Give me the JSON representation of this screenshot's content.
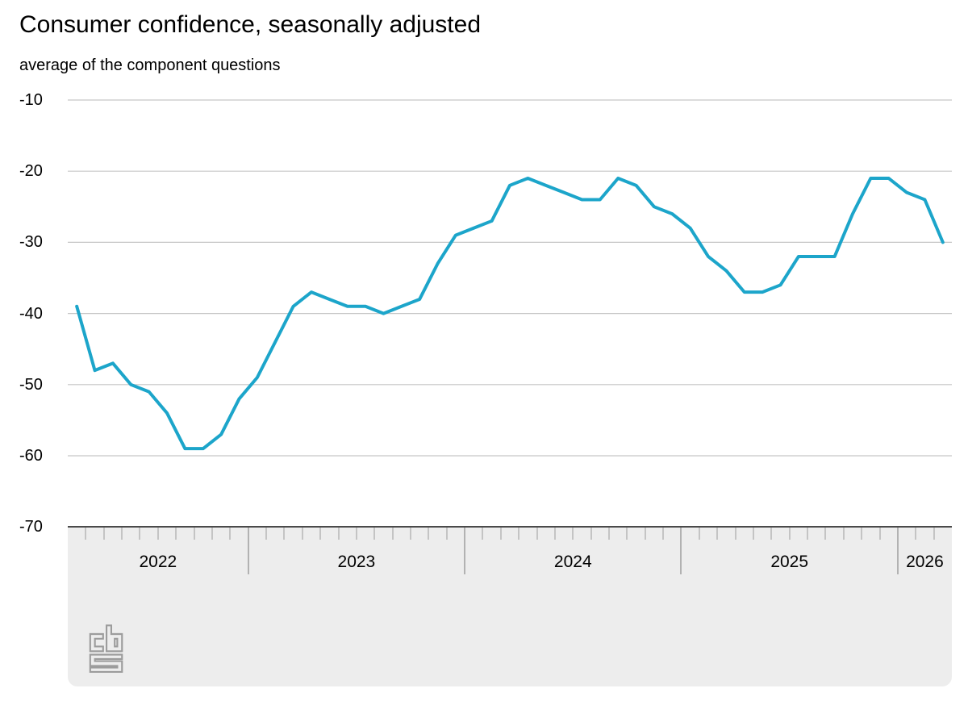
{
  "header": {
    "title": "Consumer confidence, seasonally adjusted",
    "subtitle": "average of the component questions"
  },
  "chart_data": {
    "type": "line",
    "title": "Consumer confidence, seasonally adjusted",
    "subtitle": "average of the component questions",
    "frequency": "monthly",
    "x_months": [
      "2022-03",
      "2022-04",
      "2022-05",
      "2022-06",
      "2022-07",
      "2022-08",
      "2022-09",
      "2022-10",
      "2022-11",
      "2022-12",
      "2023-01",
      "2023-02",
      "2023-03",
      "2023-04",
      "2023-05",
      "2023-06",
      "2023-07",
      "2023-08",
      "2023-09",
      "2023-10",
      "2023-11",
      "2023-12",
      "2024-01",
      "2024-02",
      "2024-03",
      "2024-04",
      "2024-05",
      "2024-06",
      "2024-07",
      "2024-08",
      "2024-09",
      "2024-10",
      "2024-11",
      "2024-12",
      "2025-01",
      "2025-02",
      "2025-03",
      "2025-04",
      "2025-05",
      "2025-06",
      "2025-07",
      "2025-08",
      "2025-09",
      "2025-10",
      "2025-11",
      "2025-12",
      "2026-01",
      "2026-02",
      "2026-03"
    ],
    "series": [
      {
        "name": "consumer confidence (seasonally adjusted)",
        "values": [
          -39,
          -48,
          -47,
          -50,
          -51,
          -54,
          -59,
          -59,
          -57,
          -52,
          -49,
          -44,
          -39,
          -37,
          -38,
          -39,
          -39,
          -40,
          -39,
          -38,
          -33,
          -29,
          -28,
          -27,
          -22,
          -21,
          -22,
          -23,
          -24,
          -24,
          -21,
          -22,
          -25,
          -26,
          -28,
          -32,
          -34,
          -37,
          -37,
          -36,
          -32,
          -32,
          -32,
          -26,
          -21,
          -21,
          -23,
          -24,
          -30
        ]
      }
    ],
    "ylim": [
      -70,
      -10
    ],
    "y_tick_labels": [
      "-10",
      "-20",
      "-30",
      "-40",
      "-50",
      "-60",
      "-70"
    ],
    "y_tick_values": [
      -10,
      -20,
      -30,
      -40,
      -50,
      -60,
      -70
    ],
    "year_labels": [
      "2022",
      "2023",
      "2024",
      "2025",
      "2026"
    ],
    "grid": true,
    "legend": "none"
  },
  "branding": {
    "logo": "CBS"
  },
  "colors": {
    "line": "#1CA5CA",
    "grid": "#C6C6C6",
    "axis_band": "#EDEDED",
    "axis_border": "#4A4A4A",
    "month_tick": "#C4C4C4",
    "year_separator": "#B2B2B2",
    "text": "#000000",
    "logo": "#9C9C9C"
  }
}
